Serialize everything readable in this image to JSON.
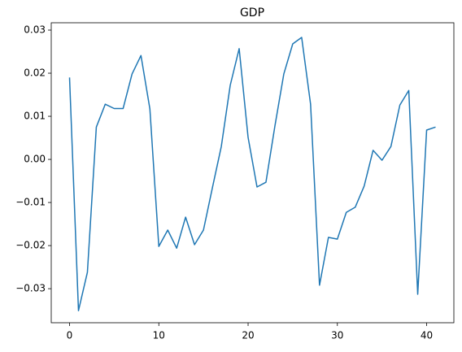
{
  "chart_data": {
    "type": "line",
    "title": "GDP",
    "x": [
      0,
      1,
      2,
      3,
      4,
      5,
      6,
      7,
      8,
      9,
      10,
      11,
      12,
      13,
      14,
      15,
      16,
      17,
      18,
      19,
      20,
      21,
      22,
      23,
      24,
      25,
      26,
      27,
      28,
      29,
      30,
      31,
      32,
      33,
      34,
      35,
      36,
      37,
      38,
      39,
      40,
      41
    ],
    "series": [
      {
        "name": "GDP",
        "color": "#1f77b4",
        "values": [
          0.019,
          -0.0351,
          -0.0262,
          0.0075,
          0.0128,
          0.0118,
          0.0118,
          0.0198,
          0.0241,
          0.0117,
          -0.0202,
          -0.0164,
          -0.0206,
          -0.0134,
          -0.0198,
          -0.0164,
          -0.0066,
          0.003,
          0.0172,
          0.0257,
          0.0051,
          -0.0064,
          -0.0053,
          0.0077,
          0.0198,
          0.0268,
          0.0283,
          0.0128,
          -0.0292,
          -0.0181,
          -0.0185,
          -0.0123,
          -0.0111,
          -0.0062,
          0.0021,
          -0.0002,
          0.003,
          0.0126,
          0.016,
          -0.0313,
          0.0068,
          0.0075
        ]
      }
    ],
    "xlim": [
      -2.05,
      43.05
    ],
    "xticks": [
      0,
      10,
      20,
      30,
      40
    ],
    "ylim": [
      -0.0379,
      0.0317
    ],
    "yticks": [
      {
        "value": -0.03,
        "label": "−0.03"
      },
      {
        "value": -0.02,
        "label": "−0.02"
      },
      {
        "value": -0.01,
        "label": "−0.01"
      },
      {
        "value": 0,
        "label": "0.00"
      },
      0.01,
      0.02,
      0.03
    ],
    "grid": false
  }
}
